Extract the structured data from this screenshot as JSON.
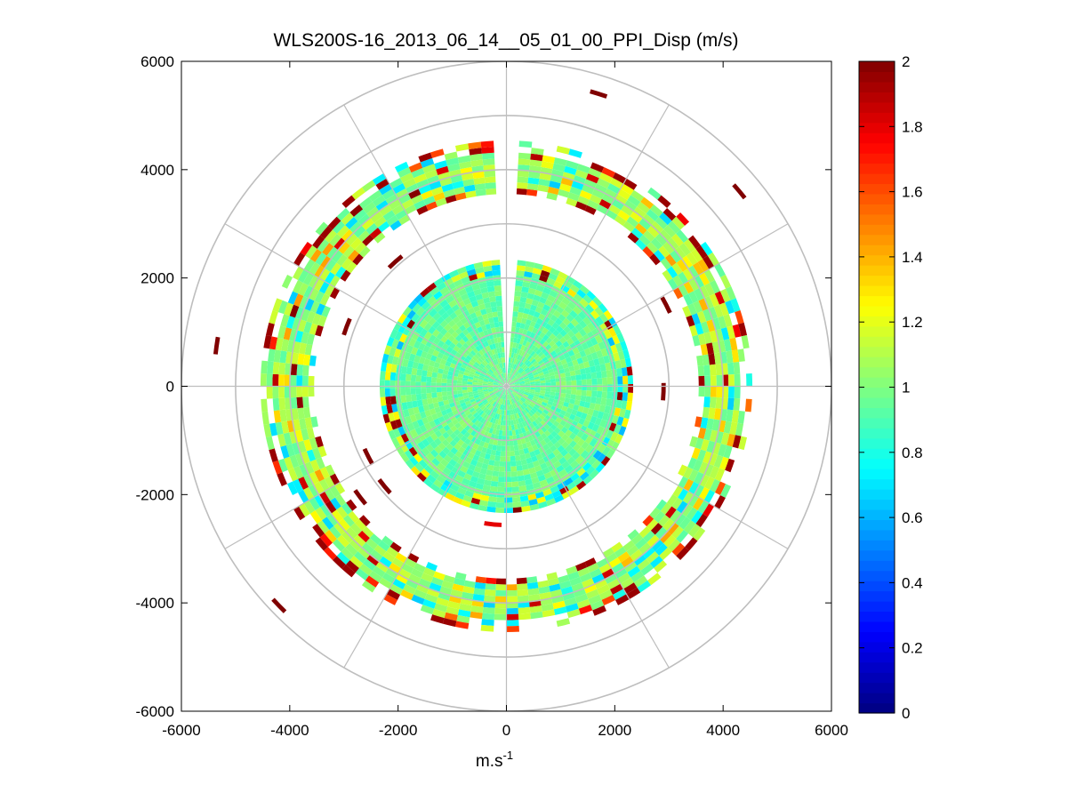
{
  "chart_data": {
    "type": "heatmap",
    "subtype": "polar-ppi",
    "title": "WLS200S-16_2013_06_14__05_01_00_PPI_Disp (m/s)",
    "xlabel_base": "m.s",
    "xlabel_exponent": "-1",
    "ylabel": "",
    "xlim": [
      -6000,
      6000
    ],
    "ylim": [
      -6000,
      6000
    ],
    "x_ticks": [
      -6000,
      -4000,
      -2000,
      0,
      2000,
      4000,
      6000
    ],
    "x_tick_labels": [
      "-6000",
      "-4000",
      "-2000",
      "0",
      "2000",
      "4000",
      "6000"
    ],
    "y_ticks": [
      6000,
      4000,
      2000,
      0,
      -2000,
      -4000,
      -6000
    ],
    "y_tick_labels": [
      "6000",
      "4000",
      "2000",
      "0",
      "-2000",
      "-4000",
      "-6000"
    ],
    "polar_grid_radii": [
      1000,
      2000,
      3000,
      4000,
      5000,
      6000
    ],
    "polar_grid_angles_deg": [
      0,
      30,
      60,
      90,
      120,
      150,
      180,
      210,
      240,
      270,
      300,
      330
    ],
    "grid": true,
    "colorbar": {
      "colormap": "jet",
      "range": [
        0,
        2
      ],
      "ticks": [
        0,
        0.2,
        0.4,
        0.6,
        0.8,
        1,
        1.2,
        1.4,
        1.6,
        1.8,
        2
      ],
      "tick_labels": [
        "0",
        "0.2",
        "0.4",
        "0.6",
        "0.8",
        "1",
        "1.2",
        "1.4",
        "1.6",
        "1.8",
        "2"
      ]
    },
    "bands": [
      {
        "name": "inner disk",
        "r_min": 0,
        "r_max": 2300,
        "typical_value": 0.95,
        "gap_azimuth_deg": [
          -5,
          5
        ]
      },
      {
        "name": "outer ring",
        "r_min": 3550,
        "r_max": 4450,
        "typical_value": 1.05,
        "gap_azimuth_deg": [
          -3,
          3
        ]
      }
    ],
    "isolated_cells": [
      {
        "x": 1700,
        "y": 5400,
        "value": 2
      },
      {
        "x": 4300,
        "y": 3600,
        "value": 2
      },
      {
        "x": -5350,
        "y": 750,
        "value": 2
      },
      {
        "x": -4200,
        "y": -4050,
        "value": 2
      },
      {
        "x": -2050,
        "y": 2300,
        "value": 2
      },
      {
        "x": -2950,
        "y": 1100,
        "value": 2
      },
      {
        "x": 2950,
        "y": 1500,
        "value": 2
      },
      {
        "x": 2900,
        "y": -100,
        "value": 2
      },
      {
        "x": -2550,
        "y": -1300,
        "value": 2
      },
      {
        "x": -2250,
        "y": -1850,
        "value": 2
      },
      {
        "x": -2700,
        "y": -2050,
        "value": 2
      },
      {
        "x": -250,
        "y": -2550,
        "value": 1.8
      }
    ]
  }
}
